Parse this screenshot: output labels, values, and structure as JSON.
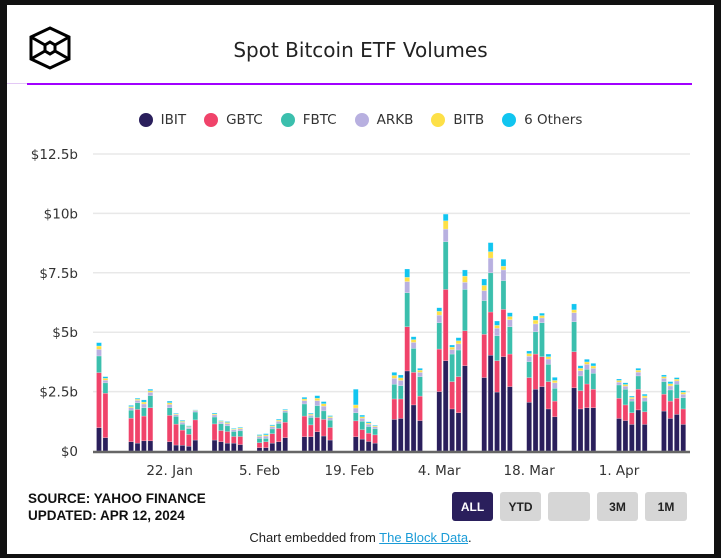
{
  "title": "Spot Bitcoin ETF Volumes",
  "source": "SOURCE: YAHOO FINANCE",
  "updated": "UPDATED: APR 12, 2024",
  "range_buttons": [
    {
      "label": "ALL",
      "active": true
    },
    {
      "label": "YTD",
      "active": false
    },
    {
      "label": "",
      "active": false
    },
    {
      "label": "3M",
      "active": false
    },
    {
      "label": "1M",
      "active": false
    }
  ],
  "footer": {
    "prefix": "Chart embedded from ",
    "link": "The Block Data",
    "suffix": "."
  },
  "chart_data": {
    "type": "bar",
    "stacked": true,
    "title": "Spot Bitcoin ETF Volumes",
    "legend_position": "top",
    "grid": true,
    "ylim": [
      0,
      12.5
    ],
    "yticks": [
      {
        "value": 0,
        "label": "$0"
      },
      {
        "value": 2.5,
        "label": "$2.5b"
      },
      {
        "value": 5,
        "label": "$5b"
      },
      {
        "value": 7.5,
        "label": "$7.5b"
      },
      {
        "value": 10,
        "label": "$10b"
      },
      {
        "value": 12.5,
        "label": "$12.5b"
      }
    ],
    "xticks": [
      {
        "date": "2024-01-22",
        "label": "22. Jan"
      },
      {
        "date": "2024-02-05",
        "label": "5. Feb"
      },
      {
        "date": "2024-02-19",
        "label": "19. Feb"
      },
      {
        "date": "2024-03-04",
        "label": "4. Mar"
      },
      {
        "date": "2024-03-18",
        "label": "18. Mar"
      },
      {
        "date": "2024-04-01",
        "label": "1. Apr"
      }
    ],
    "dates": [
      "2024-01-11",
      "2024-01-12",
      "2024-01-16",
      "2024-01-17",
      "2024-01-18",
      "2024-01-19",
      "2024-01-22",
      "2024-01-23",
      "2024-01-24",
      "2024-01-25",
      "2024-01-26",
      "2024-01-29",
      "2024-01-30",
      "2024-01-31",
      "2024-02-01",
      "2024-02-02",
      "2024-02-05",
      "2024-02-06",
      "2024-02-07",
      "2024-02-08",
      "2024-02-09",
      "2024-02-12",
      "2024-02-13",
      "2024-02-14",
      "2024-02-15",
      "2024-02-16",
      "2024-02-20",
      "2024-02-21",
      "2024-02-22",
      "2024-02-23",
      "2024-02-26",
      "2024-02-27",
      "2024-02-28",
      "2024-02-29",
      "2024-03-01",
      "2024-03-04",
      "2024-03-05",
      "2024-03-06",
      "2024-03-07",
      "2024-03-08",
      "2024-03-11",
      "2024-03-12",
      "2024-03-13",
      "2024-03-14",
      "2024-03-15",
      "2024-03-18",
      "2024-03-19",
      "2024-03-20",
      "2024-03-21",
      "2024-03-22",
      "2024-03-25",
      "2024-03-26",
      "2024-03-27",
      "2024-03-28",
      "2024-04-01",
      "2024-04-02",
      "2024-04-03",
      "2024-04-04",
      "2024-04-05",
      "2024-04-08",
      "2024-04-09",
      "2024-04-10",
      "2024-04-11"
    ],
    "series": [
      {
        "name": "IBIT",
        "color": "#2a1f5c",
        "values": [
          0.98,
          0.56,
          0.39,
          0.33,
          0.43,
          0.43,
          0.39,
          0.25,
          0.24,
          0.2,
          0.46,
          0.46,
          0.39,
          0.33,
          0.33,
          0.27,
          0.14,
          0.14,
          0.33,
          0.39,
          0.56,
          0.6,
          0.6,
          0.81,
          0.63,
          0.46,
          0.6,
          0.5,
          0.4,
          0.33,
          1.33,
          1.37,
          3.37,
          1.94,
          1.28,
          2.5,
          3.8,
          1.77,
          1.61,
          3.59,
          3.09,
          4.03,
          2.48,
          3.97,
          2.71,
          2.05,
          2.6,
          2.71,
          1.77,
          1.44,
          2.66,
          1.77,
          1.82,
          1.82,
          1.37,
          1.28,
          1.12,
          1.73,
          1.12,
          1.68,
          1.37,
          1.54,
          1.12
        ]
      },
      {
        "name": "GBTC",
        "color": "#f0436a",
        "values": [
          2.32,
          1.87,
          0.99,
          1.42,
          1.04,
          1.39,
          1.11,
          0.88,
          0.64,
          0.5,
          0.85,
          0.68,
          0.47,
          0.49,
          0.28,
          0.34,
          0.21,
          0.25,
          0.4,
          0.56,
          0.65,
          0.87,
          0.5,
          0.6,
          0.7,
          0.53,
          0.67,
          0.4,
          0.35,
          0.35,
          0.86,
          0.82,
          1.86,
          1.37,
          1.03,
          1.79,
          3.0,
          1.15,
          1.52,
          1.47,
          1.82,
          1.82,
          1.32,
          1.99,
          1.37,
          1.04,
          1.48,
          1.26,
          1.15,
          0.66,
          1.52,
          0.77,
          1.0,
          0.78,
          0.85,
          0.66,
          0.49,
          0.87,
          0.53,
          0.71,
          0.73,
          0.68,
          0.65
        ]
      },
      {
        "name": "FBTC",
        "color": "#3bbfad",
        "values": [
          0.7,
          0.44,
          0.34,
          0.28,
          0.35,
          0.51,
          0.32,
          0.33,
          0.25,
          0.24,
          0.33,
          0.29,
          0.29,
          0.24,
          0.21,
          0.24,
          0.18,
          0.14,
          0.2,
          0.21,
          0.42,
          0.51,
          0.31,
          0.5,
          0.36,
          0.31,
          0.34,
          0.35,
          0.28,
          0.26,
          0.62,
          0.56,
          1.43,
          1.01,
          0.82,
          1.11,
          2.01,
          1.16,
          1.12,
          1.74,
          1.42,
          1.65,
          1.05,
          1.21,
          1.15,
          0.67,
          0.94,
          1.43,
          0.73,
          0.54,
          1.26,
          0.62,
          0.62,
          0.67,
          0.56,
          0.66,
          0.49,
          0.56,
          0.45,
          0.53,
          0.47,
          0.59,
          0.47
        ]
      },
      {
        "name": "ARKB",
        "color": "#b8b0e0",
        "values": [
          0.28,
          0.11,
          0.1,
          0.1,
          0.16,
          0.14,
          0.14,
          0.07,
          0.08,
          0.06,
          0.05,
          0.09,
          0.07,
          0.09,
          0.07,
          0.08,
          0.08,
          0.1,
          0.09,
          0.09,
          0.07,
          0.14,
          0.09,
          0.21,
          0.2,
          0.1,
          0.2,
          0.13,
          0.1,
          0.08,
          0.25,
          0.22,
          0.47,
          0.25,
          0.18,
          0.32,
          0.53,
          0.19,
          0.26,
          0.3,
          0.42,
          0.62,
          0.32,
          0.45,
          0.3,
          0.23,
          0.33,
          0.2,
          0.22,
          0.23,
          0.38,
          0.22,
          0.21,
          0.21,
          0.12,
          0.13,
          0.1,
          0.16,
          0.14,
          0.14,
          0.17,
          0.14,
          0.15
        ]
      },
      {
        "name": "BITB",
        "color": "#fde047",
        "values": [
          0.14,
          0.08,
          0.05,
          0.05,
          0.08,
          0.07,
          0.07,
          0.03,
          0.04,
          0.03,
          0.02,
          0.04,
          0.03,
          0.05,
          0.03,
          0.04,
          0.04,
          0.05,
          0.04,
          0.05,
          0.03,
          0.07,
          0.05,
          0.1,
          0.1,
          0.05,
          0.13,
          0.06,
          0.05,
          0.04,
          0.12,
          0.11,
          0.18,
          0.12,
          0.09,
          0.16,
          0.35,
          0.1,
          0.13,
          0.26,
          0.22,
          0.27,
          0.12,
          0.16,
          0.13,
          0.11,
          0.16,
          0.1,
          0.1,
          0.1,
          0.12,
          0.1,
          0.1,
          0.1,
          0.07,
          0.07,
          0.06,
          0.08,
          0.08,
          0.07,
          0.09,
          0.07,
          0.08
        ]
      },
      {
        "name": "6 Others",
        "color": "#11c5f0",
        "values": [
          0.14,
          0.07,
          0.05,
          0.04,
          0.09,
          0.06,
          0.07,
          0.03,
          0.04,
          0.03,
          0.02,
          0.04,
          0.03,
          0.04,
          0.03,
          0.03,
          0.04,
          0.05,
          0.04,
          0.04,
          0.03,
          0.07,
          0.04,
          0.11,
          0.09,
          0.04,
          0.66,
          0.07,
          0.05,
          0.03,
          0.13,
          0.12,
          0.35,
          0.12,
          0.08,
          0.15,
          0.28,
          0.09,
          0.13,
          0.26,
          0.27,
          0.38,
          0.18,
          0.29,
          0.16,
          0.11,
          0.17,
          0.1,
          0.11,
          0.13,
          0.25,
          0.11,
          0.11,
          0.11,
          0.06,
          0.07,
          0.05,
          0.08,
          0.07,
          0.07,
          0.09,
          0.07,
          0.07
        ]
      }
    ]
  }
}
